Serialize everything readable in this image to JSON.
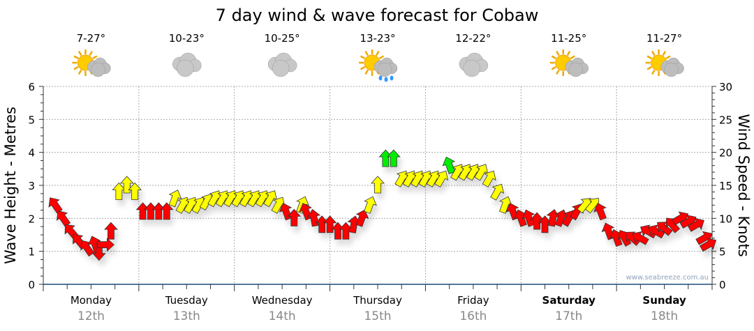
{
  "chart_data": {
    "type": "scatter",
    "title": "7 day wind & wave forecast for Cobaw",
    "ylabel": "Wave Height - Metres",
    "y2label": "Wind Speed - Knots",
    "ylim": [
      0,
      6
    ],
    "y2lim": [
      0,
      30
    ],
    "yticks": [
      "0",
      "1",
      "2",
      "3",
      "4",
      "5",
      "6"
    ],
    "y2ticks": [
      "0",
      "5",
      "10",
      "15",
      "20",
      "25",
      "30"
    ],
    "grid": true,
    "watermark": "www.seabreeze.com.au",
    "days": [
      {
        "name": "Monday",
        "date": "12th",
        "temp": "7-27°",
        "icon": "sun-cloud",
        "bold": false
      },
      {
        "name": "Tuesday",
        "date": "13th",
        "temp": "10-23°",
        "icon": "cloud",
        "bold": false
      },
      {
        "name": "Wednesday",
        "date": "14th",
        "temp": "10-25°",
        "icon": "cloud",
        "bold": false
      },
      {
        "name": "Thursday",
        "date": "15th",
        "temp": "13-23°",
        "icon": "sun-rain",
        "bold": false
      },
      {
        "name": "Friday",
        "date": "16th",
        "temp": "12-22°",
        "icon": "cloud",
        "bold": false
      },
      {
        "name": "Saturday",
        "date": "17th",
        "temp": "11-25°",
        "icon": "sun-cloud",
        "bold": true
      },
      {
        "name": "Sunday",
        "date": "18th",
        "temp": "11-27°",
        "icon": "sun-cloud",
        "bold": true
      }
    ],
    "colors": {
      "r": "#ff0000",
      "y": "#ffff00",
      "g": "#00ee00"
    },
    "wind_points_fields": [
      "hour",
      "knots",
      "arrow_angle_deg",
      "color"
    ],
    "wind_points": [
      [
        3,
        12,
        -35,
        "r"
      ],
      [
        5,
        10,
        -35,
        "r"
      ],
      [
        7,
        8,
        -40,
        "r"
      ],
      [
        9,
        6.5,
        -40,
        "r"
      ],
      [
        11,
        5.5,
        -35,
        "r"
      ],
      [
        13,
        6,
        -20,
        "r"
      ],
      [
        14,
        5,
        180,
        "r"
      ],
      [
        15.5,
        6,
        90,
        "r"
      ],
      [
        17,
        8,
        0,
        "r"
      ],
      [
        19,
        14,
        0,
        "y"
      ],
      [
        21,
        15,
        0,
        "y"
      ],
      [
        23,
        14,
        0,
        "y"
      ],
      [
        25,
        11,
        0,
        "r"
      ],
      [
        27,
        11,
        0,
        "r"
      ],
      [
        29,
        11,
        0,
        "r"
      ],
      [
        31,
        11,
        0,
        "r"
      ],
      [
        33,
        13,
        20,
        "y"
      ],
      [
        35,
        12,
        30,
        "y"
      ],
      [
        37,
        12,
        30,
        "y"
      ],
      [
        39,
        12,
        30,
        "y"
      ],
      [
        41,
        12.5,
        30,
        "y"
      ],
      [
        43,
        13,
        30,
        "y"
      ],
      [
        45,
        13,
        30,
        "y"
      ],
      [
        47,
        13,
        30,
        "y"
      ],
      [
        49,
        13,
        30,
        "y"
      ],
      [
        51,
        13,
        30,
        "y"
      ],
      [
        53,
        13,
        30,
        "y"
      ],
      [
        55,
        13,
        30,
        "y"
      ],
      [
        57,
        13,
        30,
        "y"
      ],
      [
        59,
        12,
        30,
        "y"
      ],
      [
        61,
        11,
        -20,
        "r"
      ],
      [
        63,
        10,
        0,
        "r"
      ],
      [
        65,
        12,
        20,
        "y"
      ],
      [
        66,
        11,
        -20,
        "r"
      ],
      [
        68,
        10,
        -10,
        "r"
      ],
      [
        70,
        9,
        0,
        "r"
      ],
      [
        72,
        9,
        0,
        "r"
      ],
      [
        74,
        8,
        0,
        "r"
      ],
      [
        76,
        8,
        0,
        "r"
      ],
      [
        78,
        9,
        10,
        "r"
      ],
      [
        80,
        10,
        20,
        "r"
      ],
      [
        82,
        12,
        20,
        "y"
      ],
      [
        84,
        15,
        0,
        "y"
      ],
      [
        86,
        19,
        0,
        "g"
      ],
      [
        88,
        19,
        0,
        "g"
      ],
      [
        90,
        16,
        30,
        "y"
      ],
      [
        92,
        16,
        30,
        "y"
      ],
      [
        94,
        16,
        30,
        "y"
      ],
      [
        96,
        16,
        30,
        "y"
      ],
      [
        98,
        16,
        30,
        "y"
      ],
      [
        100,
        16,
        30,
        "y"
      ],
      [
        102,
        18,
        -20,
        "g"
      ],
      [
        104,
        17,
        30,
        "y"
      ],
      [
        106,
        17,
        30,
        "y"
      ],
      [
        108,
        17,
        30,
        "y"
      ],
      [
        110,
        17,
        30,
        "y"
      ],
      [
        112,
        16,
        30,
        "y"
      ],
      [
        114,
        14,
        30,
        "y"
      ],
      [
        116,
        12,
        20,
        "y"
      ],
      [
        118,
        11,
        -20,
        "r"
      ],
      [
        120,
        10,
        -20,
        "r"
      ],
      [
        122,
        10,
        -20,
        "r"
      ],
      [
        124,
        9.5,
        0,
        "r"
      ],
      [
        126,
        9,
        0,
        "r"
      ],
      [
        128,
        10,
        10,
        "r"
      ],
      [
        130,
        10,
        20,
        "r"
      ],
      [
        132,
        10,
        30,
        "r"
      ],
      [
        134,
        11,
        30,
        "r"
      ],
      [
        136,
        12,
        40,
        "y"
      ],
      [
        138,
        12,
        40,
        "y"
      ],
      [
        140,
        11,
        -20,
        "r"
      ],
      [
        142,
        8,
        -20,
        "r"
      ],
      [
        144,
        7,
        -20,
        "r"
      ],
      [
        146,
        7,
        -30,
        "r"
      ],
      [
        148,
        7,
        -50,
        "r"
      ],
      [
        150,
        7,
        -60,
        "r"
      ],
      [
        152,
        8,
        -60,
        "r"
      ],
      [
        154,
        8,
        -60,
        "r"
      ],
      [
        156,
        8.5,
        -50,
        "r"
      ],
      [
        158,
        9,
        -40,
        "r"
      ],
      [
        160,
        10,
        60,
        "r"
      ],
      [
        162,
        9.5,
        60,
        "r"
      ],
      [
        164,
        9,
        60,
        "r"
      ],
      [
        166,
        7,
        60,
        "r"
      ],
      [
        167,
        6,
        60,
        "r"
      ]
    ]
  }
}
